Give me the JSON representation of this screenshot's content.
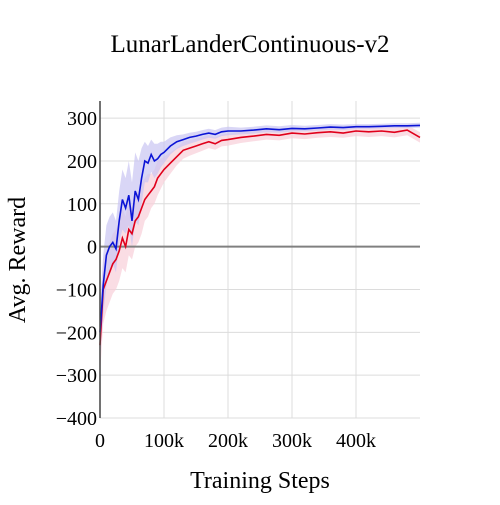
{
  "chart_data": {
    "type": "line",
    "title": "LunarLanderContinuous-v2",
    "xlabel": "Training Steps",
    "ylabel": "Avg. Reward",
    "xlim": [
      0,
      500000
    ],
    "ylim": [
      -400,
      340
    ],
    "x_ticks": [
      {
        "value": 0,
        "label": "0"
      },
      {
        "value": 100000,
        "label": "100k"
      },
      {
        "value": 200000,
        "label": "200k"
      },
      {
        "value": 300000,
        "label": "300k"
      },
      {
        "value": 400000,
        "label": "400k"
      }
    ],
    "y_ticks": [
      {
        "value": -400,
        "label": "−400"
      },
      {
        "value": -300,
        "label": "−300"
      },
      {
        "value": -200,
        "label": "−200"
      },
      {
        "value": -100,
        "label": "−100"
      },
      {
        "value": 0,
        "label": "0"
      },
      {
        "value": 100,
        "label": "100"
      },
      {
        "value": 200,
        "label": "200"
      },
      {
        "value": 300,
        "label": "300"
      }
    ],
    "grid": true,
    "legend": "none",
    "colors": {
      "blue_line": "#0b14d6",
      "blue_band": "#c9c4f2",
      "red_line": "#e0001b",
      "red_band": "#f8cfd8",
      "zero_line": "#808080",
      "grid": "#dcdcdc"
    },
    "series": [
      {
        "color": "#0b14d6",
        "x": [
          0,
          5000,
          10000,
          15000,
          20000,
          25000,
          30000,
          35000,
          40000,
          45000,
          50000,
          55000,
          60000,
          65000,
          70000,
          75000,
          80000,
          85000,
          90000,
          95000,
          100000,
          110000,
          120000,
          130000,
          140000,
          150000,
          160000,
          170000,
          180000,
          190000,
          200000,
          220000,
          240000,
          260000,
          280000,
          300000,
          320000,
          340000,
          360000,
          380000,
          400000,
          420000,
          440000,
          460000,
          480000,
          500000
        ],
        "y": [
          -200,
          -90,
          -20,
          0,
          10,
          -5,
          60,
          110,
          90,
          120,
          60,
          130,
          110,
          160,
          200,
          195,
          215,
          200,
          205,
          215,
          220,
          235,
          245,
          250,
          255,
          258,
          262,
          265,
          262,
          268,
          270,
          270,
          272,
          275,
          273,
          276,
          275,
          277,
          279,
          278,
          280,
          280,
          281,
          282,
          282,
          283
        ],
        "lower": [
          -260,
          -160,
          -90,
          -60,
          -40,
          -60,
          10,
          40,
          30,
          50,
          0,
          60,
          50,
          100,
          150,
          150,
          175,
          160,
          170,
          185,
          195,
          215,
          228,
          235,
          240,
          245,
          250,
          254,
          252,
          258,
          260,
          262,
          264,
          267,
          266,
          269,
          269,
          271,
          273,
          272,
          275,
          275,
          276,
          277,
          277,
          278
        ],
        "upper": [
          -140,
          -20,
          50,
          70,
          80,
          60,
          130,
          180,
          160,
          200,
          150,
          220,
          200,
          230,
          245,
          235,
          250,
          240,
          240,
          245,
          245,
          255,
          260,
          262,
          266,
          268,
          272,
          275,
          272,
          278,
          280,
          278,
          280,
          283,
          281,
          284,
          282,
          284,
          286,
          285,
          286,
          286,
          287,
          288,
          288,
          289
        ]
      },
      {
        "color": "#e0001b",
        "x": [
          0,
          5000,
          10000,
          15000,
          20000,
          25000,
          30000,
          35000,
          40000,
          45000,
          50000,
          55000,
          60000,
          65000,
          70000,
          75000,
          80000,
          85000,
          90000,
          95000,
          100000,
          110000,
          120000,
          130000,
          140000,
          150000,
          160000,
          170000,
          180000,
          190000,
          200000,
          220000,
          240000,
          260000,
          280000,
          300000,
          320000,
          340000,
          360000,
          380000,
          400000,
          420000,
          440000,
          460000,
          480000,
          500000
        ],
        "y": [
          -230,
          -100,
          -80,
          -60,
          -40,
          -30,
          -10,
          20,
          0,
          40,
          30,
          60,
          70,
          90,
          110,
          120,
          130,
          140,
          160,
          170,
          180,
          195,
          210,
          225,
          230,
          235,
          240,
          245,
          240,
          248,
          250,
          255,
          258,
          262,
          260,
          265,
          263,
          266,
          268,
          265,
          270,
          268,
          270,
          267,
          272,
          255
        ],
        "lower": [
          -300,
          -180,
          -150,
          -130,
          -110,
          -100,
          -80,
          -50,
          -60,
          -20,
          -30,
          0,
          10,
          30,
          60,
          70,
          90,
          100,
          120,
          135,
          150,
          170,
          190,
          205,
          212,
          218,
          224,
          230,
          226,
          234,
          236,
          242,
          246,
          250,
          248,
          253,
          251,
          254,
          256,
          254,
          258,
          256,
          258,
          255,
          260,
          243
        ],
        "upper": [
          -160,
          -30,
          -10,
          10,
          30,
          40,
          60,
          90,
          70,
          110,
          90,
          120,
          130,
          150,
          160,
          170,
          170,
          180,
          200,
          205,
          210,
          220,
          230,
          245,
          248,
          252,
          256,
          260,
          255,
          262,
          264,
          268,
          270,
          274,
          272,
          277,
          275,
          278,
          280,
          276,
          282,
          280,
          282,
          279,
          284,
          267
        ]
      }
    ]
  }
}
